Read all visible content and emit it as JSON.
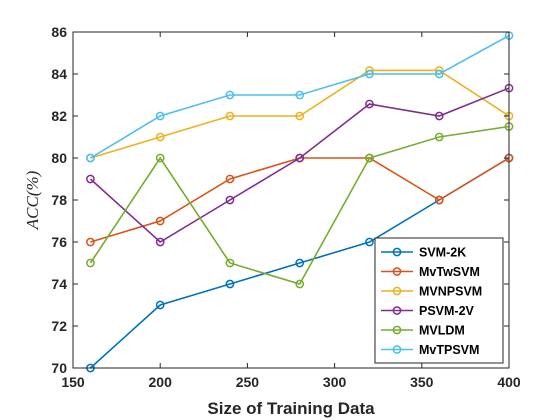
{
  "chart_data": {
    "type": "line",
    "xlabel": "Size of Training Data",
    "ylabel": "ACC(%)",
    "xlim": [
      150,
      400
    ],
    "ylim": [
      70,
      86
    ],
    "xticks": [
      150,
      200,
      250,
      300,
      350,
      400
    ],
    "yticks": [
      70,
      72,
      74,
      76,
      78,
      80,
      82,
      84,
      86
    ],
    "grid": false,
    "legend_position": "lower-right",
    "x": [
      160,
      200,
      240,
      280,
      320,
      360,
      400
    ],
    "series": [
      {
        "name": "SVM-2K",
        "color": "#0072BD",
        "marker": "circle",
        "values": [
          70,
          73,
          74,
          75,
          76,
          78,
          80
        ]
      },
      {
        "name": "MvTwSVM",
        "color": "#D95319",
        "marker": "circle",
        "values": [
          76,
          77,
          79,
          80,
          80,
          78,
          80
        ]
      },
      {
        "name": "MVNPSVM",
        "color": "#EDB120",
        "marker": "circle",
        "values": [
          80,
          81,
          82,
          82,
          84.17,
          84.17,
          82
        ]
      },
      {
        "name": "PSVM-2V",
        "color": "#7E2F8E",
        "marker": "circle",
        "values": [
          79,
          76,
          78,
          80,
          82.57,
          82,
          83.33
        ]
      },
      {
        "name": "MVLDM",
        "color": "#77AC30",
        "marker": "circle",
        "values": [
          75,
          80,
          75,
          74,
          80,
          81,
          81.5
        ]
      },
      {
        "name": "MvTPSVM",
        "color": "#4DBEEE",
        "marker": "circle",
        "values": [
          80,
          82,
          83,
          83,
          84,
          84,
          85.83
        ]
      }
    ]
  }
}
